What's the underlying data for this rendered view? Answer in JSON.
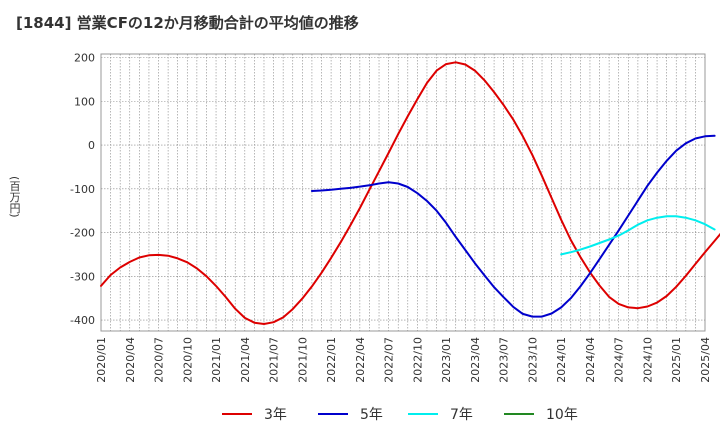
{
  "chart_data": {
    "type": "line",
    "title": "[1844]  営業CFの12か月移動合計の平均値の推移",
    "ylabel": "(百万円)",
    "xlabel": "",
    "ylim": [
      -425,
      208
    ],
    "yticks": [
      200,
      100,
      0,
      -100,
      -200,
      -300,
      -400
    ],
    "xticks": [
      "2020/01",
      "2020/04",
      "2020/07",
      "2020/10",
      "2021/01",
      "2021/04",
      "2021/07",
      "2021/10",
      "2022/01",
      "2022/04",
      "2022/07",
      "2022/10",
      "2023/01",
      "2023/04",
      "2023/07",
      "2023/10",
      "2024/01",
      "2024/04",
      "2024/07",
      "2024/10",
      "2025/01",
      "2025/04"
    ],
    "grid": true,
    "legend_position": "bottom",
    "series": [
      {
        "name": "3年",
        "color": "#dd0000",
        "start": "2020/01",
        "values": [
          -322,
          -297,
          -280,
          -267,
          -257,
          -252,
          -251,
          -253,
          -259,
          -268,
          -282,
          -300,
          -322,
          -347,
          -374,
          -395,
          -406,
          -409,
          -405,
          -394,
          -375,
          -351,
          -323,
          -292,
          -258,
          -222,
          -184,
          -144,
          -102,
          -60,
          -18,
          25,
          66,
          105,
          142,
          170,
          185,
          189,
          184,
          170,
          148,
          121,
          91,
          58,
          20,
          -23,
          -71,
          -121,
          -171,
          -217,
          -256,
          -291,
          -321,
          -347,
          -363,
          -371,
          -373,
          -369,
          -360,
          -345,
          -324,
          -299,
          -272,
          -245,
          -219,
          -193,
          -166,
          -140,
          -114
        ]
      },
      {
        "name": "5年",
        "color": "#0000cc",
        "start": "2021/11",
        "values": [
          -105,
          -104,
          -102,
          -100,
          -98,
          -95,
          -92,
          -88,
          -85,
          -88,
          -96,
          -110,
          -128,
          -150,
          -178,
          -210,
          -240,
          -270,
          -298,
          -325,
          -348,
          -370,
          -386,
          -392,
          -392,
          -385,
          -371,
          -350,
          -323,
          -293,
          -261,
          -228,
          -195,
          -161,
          -127,
          -93,
          -63,
          -36,
          -13,
          4,
          15,
          20,
          21
        ]
      },
      {
        "name": "7年",
        "color": "#00eeee",
        "start": "2024/01",
        "values": [
          -250,
          -245,
          -239,
          -232,
          -224,
          -216,
          -207,
          -195,
          -182,
          -172,
          -166,
          -163,
          -163,
          -166,
          -172,
          -181,
          -193
        ]
      },
      {
        "name": "10年",
        "color": "#228822",
        "start": "2024/01",
        "values": []
      }
    ]
  }
}
